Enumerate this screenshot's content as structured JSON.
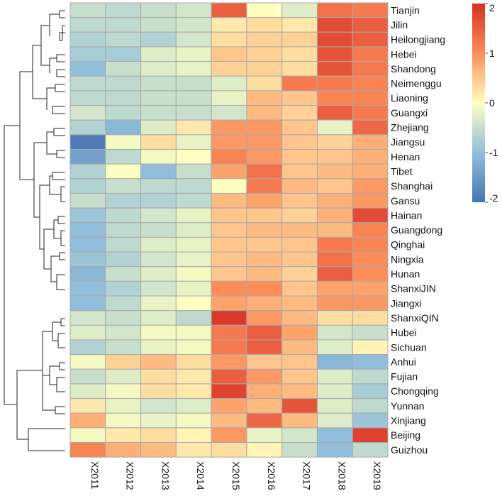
{
  "chart_data": {
    "type": "heatmap",
    "title": "",
    "columns": [
      "X2011",
      "X2012",
      "X2013",
      "X2014",
      "X2015",
      "X2016",
      "X2017",
      "X2018",
      "X2019"
    ],
    "rows": [
      "Tianjin",
      "Jilin",
      "Heilongjiang",
      "Hebei",
      "Shandong",
      "Neimenggu",
      "Liaoning",
      "Guangxi",
      "Zhejiang",
      "Jiangsu",
      "Henan",
      "Tibet",
      "Shanghai",
      "Gansu",
      "Hainan",
      "Guangdong",
      "Qinghai",
      "Ningxia",
      "Hunan",
      "ShanxiJIN",
      "Jiangxi",
      "ShanxiQIN",
      "Hubei",
      "Sichuan",
      "Anhui",
      "Fujian",
      "Chongqing",
      "Yunnan",
      "Xinjiang",
      "Beijing",
      "Guizhou"
    ],
    "values": [
      [
        -0.5,
        -0.6,
        -0.5,
        -0.4,
        1.5,
        0.0,
        -0.3,
        1.3,
        1.2
      ],
      [
        -0.6,
        -0.6,
        -0.5,
        -0.4,
        0.2,
        0.3,
        0.2,
        1.7,
        1.5
      ],
      [
        -0.7,
        -0.6,
        -0.7,
        -0.4,
        0.3,
        0.4,
        0.4,
        1.7,
        1.5
      ],
      [
        -0.8,
        -0.8,
        -0.3,
        -0.2,
        0.5,
        0.4,
        0.3,
        1.6,
        1.2
      ],
      [
        -1.0,
        -0.5,
        -0.3,
        -0.2,
        0.4,
        0.4,
        0.3,
        1.6,
        1.2
      ],
      [
        -0.6,
        -0.6,
        -0.5,
        -0.5,
        -0.3,
        0.3,
        1.2,
        1.2,
        1.1
      ],
      [
        -0.6,
        -0.6,
        -0.5,
        -0.5,
        -0.2,
        0.6,
        0.5,
        1.1,
        1.1
      ],
      [
        -0.4,
        -0.6,
        -0.5,
        -0.5,
        -0.4,
        0.6,
        0.4,
        1.5,
        1.2
      ],
      [
        -0.7,
        -1.1,
        -0.3,
        0.2,
        0.9,
        0.9,
        0.5,
        -0.2,
        1.4
      ],
      [
        -1.9,
        -0.1,
        0.3,
        -0.2,
        0.9,
        0.9,
        0.5,
        0.4,
        0.7
      ],
      [
        -1.4,
        -0.6,
        -0.1,
        0.0,
        1.1,
        0.9,
        0.5,
        0.5,
        0.7
      ],
      [
        -0.7,
        0.0,
        -1.0,
        -0.5,
        0.8,
        1.3,
        0.5,
        0.6,
        0.7
      ],
      [
        -0.7,
        -0.5,
        -0.6,
        -0.6,
        0.0,
        1.2,
        0.6,
        0.5,
        0.9
      ],
      [
        -0.5,
        -0.7,
        -0.7,
        -0.6,
        0.6,
        0.8,
        0.5,
        0.7,
        0.9
      ],
      [
        -0.9,
        -0.6,
        -0.4,
        -0.2,
        0.5,
        0.5,
        0.4,
        0.7,
        1.7
      ],
      [
        -1.0,
        -0.6,
        -0.5,
        -0.3,
        0.5,
        0.6,
        0.6,
        0.6,
        1.1
      ],
      [
        -1.0,
        -0.6,
        -0.3,
        -0.2,
        0.5,
        0.5,
        0.5,
        1.2,
        1.1
      ],
      [
        -0.9,
        -0.7,
        -0.4,
        -0.2,
        0.5,
        0.6,
        0.5,
        1.3,
        1.0
      ],
      [
        -1.1,
        -0.5,
        -0.3,
        -0.1,
        0.5,
        0.6,
        0.4,
        1.5,
        1.0
      ],
      [
        -1.0,
        -0.7,
        -0.4,
        -0.2,
        1.0,
        1.0,
        0.5,
        0.8,
        0.8
      ],
      [
        -1.0,
        -0.6,
        -0.2,
        0.0,
        0.8,
        0.7,
        0.6,
        0.9,
        0.9
      ],
      [
        -0.4,
        -0.5,
        -0.3,
        -0.6,
        1.9,
        0.9,
        0.6,
        0.3,
        0.3
      ],
      [
        -0.3,
        -0.4,
        -0.1,
        -0.1,
        1.2,
        1.5,
        0.8,
        -0.4,
        -0.5
      ],
      [
        -0.7,
        -0.5,
        -0.2,
        -0.1,
        1.2,
        1.5,
        0.6,
        -0.3,
        0.1
      ],
      [
        -0.1,
        0.4,
        0.6,
        0.3,
        0.9,
        0.5,
        0.5,
        -1.1,
        -1.0
      ],
      [
        -0.5,
        -0.3,
        0.3,
        0.2,
        1.5,
        0.9,
        0.5,
        -0.3,
        -0.6
      ],
      [
        -0.3,
        -0.1,
        0.3,
        0.2,
        1.8,
        0.7,
        0.6,
        -0.3,
        -0.8
      ],
      [
        0.2,
        -0.2,
        -0.4,
        -0.3,
        0.8,
        0.6,
        1.6,
        -0.3,
        -0.6
      ],
      [
        0.7,
        -0.1,
        -0.2,
        -0.1,
        0.6,
        1.4,
        0.6,
        -0.3,
        -0.9
      ],
      [
        -0.1,
        0.2,
        0.3,
        0.1,
        0.9,
        -0.2,
        -0.4,
        -1.0,
        1.8
      ],
      [
        1.1,
        0.7,
        0.6,
        0.2,
        0.3,
        0.1,
        -0.5,
        -1.0,
        -0.6
      ]
    ],
    "colorbar": {
      "range": [
        -2,
        2
      ],
      "ticks": [
        2,
        1,
        0,
        -1,
        -2
      ],
      "tick_labels": [
        "2",
        "1",
        "0",
        "-1",
        "-2"
      ],
      "low_color": "#4575b4",
      "mid_color": "#ffffbf",
      "high_color": "#d73027"
    },
    "dendrogram": "rows",
    "grid_color": "#a9a9a9"
  }
}
